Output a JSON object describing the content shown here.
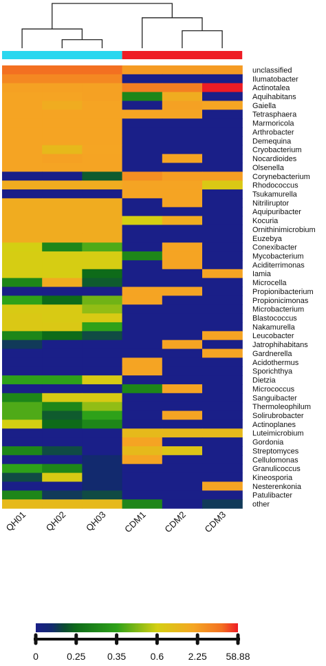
{
  "chart_data": {
    "type": "heatmap",
    "columns": [
      "QH01",
      "QH02",
      "QH03",
      "CDM1",
      "CDM2",
      "CDM3"
    ],
    "column_groups": [
      {
        "columns": [
          "QH01",
          "QH02",
          "QH03"
        ],
        "color": "#2ad7ef"
      },
      {
        "columns": [
          "CDM1",
          "CDM2",
          "CDM3"
        ],
        "color": "#ee1c25"
      }
    ],
    "rows": [
      {
        "label": "unclassified",
        "values": [
          20,
          20,
          20,
          6,
          6,
          6
        ]
      },
      {
        "label": "Ilumatobacter",
        "values": [
          12,
          12,
          12,
          0,
          0,
          0
        ]
      },
      {
        "label": "Actinotalea",
        "values": [
          4,
          4,
          4,
          15,
          15,
          58.88
        ]
      },
      {
        "label": "Aquihabitans",
        "values": [
          3,
          3,
          4,
          0.3,
          2,
          0
        ]
      },
      {
        "label": "Gaiella",
        "values": [
          3,
          2,
          3,
          0,
          4,
          2.5
        ]
      },
      {
        "label": "Tetrasphaera",
        "values": [
          3,
          3,
          3,
          2.5,
          2.5,
          0
        ]
      },
      {
        "label": "Marmoricola",
        "values": [
          3,
          3,
          3,
          0,
          0,
          0
        ]
      },
      {
        "label": "Arthrobacter",
        "values": [
          3,
          3,
          3,
          0,
          0,
          0
        ]
      },
      {
        "label": "Demequina",
        "values": [
          3,
          3,
          3,
          0,
          0,
          0
        ]
      },
      {
        "label": "Cryobacterium",
        "values": [
          3,
          1.5,
          2.5,
          0,
          0,
          0
        ]
      },
      {
        "label": "Nocardioides",
        "values": [
          3,
          4,
          3,
          0,
          3,
          0
        ]
      },
      {
        "label": "Olsenella",
        "values": [
          3,
          3,
          3,
          0,
          0,
          0
        ]
      },
      {
        "label": "Corynebacterium",
        "values": [
          0,
          0,
          0.2,
          10,
          5,
          5
        ]
      },
      {
        "label": "Rhodococcus",
        "values": [
          2,
          2,
          2,
          3,
          3,
          0.9
        ]
      },
      {
        "label": "Tsukamurella",
        "values": [
          0,
          0,
          0,
          3,
          3,
          0
        ]
      },
      {
        "label": "Nitriliruptor",
        "values": [
          2,
          2,
          2,
          0,
          3,
          0
        ]
      },
      {
        "label": "Aquipuribacter",
        "values": [
          2,
          2,
          2,
          0,
          0,
          0
        ]
      },
      {
        "label": "Kocuria",
        "values": [
          2,
          2,
          2,
          0.6,
          2,
          0
        ]
      },
      {
        "label": "Ornithinimicrobium",
        "values": [
          2,
          2,
          2,
          0,
          0,
          0
        ]
      },
      {
        "label": "Euzebya",
        "values": [
          2,
          2,
          2,
          0,
          0,
          0
        ]
      },
      {
        "label": "Conexibacter",
        "values": [
          0.6,
          0.3,
          0.4,
          0,
          3,
          0
        ]
      },
      {
        "label": "Mycobacterium",
        "values": [
          0.7,
          0.7,
          0.7,
          0.3,
          3,
          0
        ]
      },
      {
        "label": "Aciditerrimonas",
        "values": [
          0.7,
          0.7,
          0.7,
          0,
          3,
          0
        ]
      },
      {
        "label": "Iamia",
        "values": [
          0.7,
          0.7,
          0.25,
          0,
          0,
          3
        ]
      },
      {
        "label": "Microcella",
        "values": [
          0.3,
          2,
          0.2,
          0,
          0,
          0
        ]
      },
      {
        "label": "Propionibacterium",
        "values": [
          0,
          0,
          0,
          3,
          3,
          0
        ]
      },
      {
        "label": "Propionicimonas",
        "values": [
          0.35,
          0.25,
          0.45,
          3,
          0,
          0
        ]
      },
      {
        "label": "Microbacterium",
        "values": [
          0.8,
          0.8,
          0.5,
          0,
          0,
          0
        ]
      },
      {
        "label": "Blastococcus",
        "values": [
          0.9,
          0.8,
          0.8,
          0,
          0,
          0
        ]
      },
      {
        "label": "Nakamurella",
        "values": [
          0.9,
          0.9,
          0.35,
          0,
          0,
          0
        ]
      },
      {
        "label": "Leucobacter",
        "values": [
          0.3,
          0.25,
          0.15,
          0,
          0,
          3
        ]
      },
      {
        "label": "Jatrophihabitans",
        "values": [
          0.1,
          0,
          0,
          0,
          3,
          0
        ]
      },
      {
        "label": "Gardnerella",
        "values": [
          0,
          0,
          0,
          0,
          0,
          3
        ]
      },
      {
        "label": "Acidothermus",
        "values": [
          0,
          0,
          0,
          3,
          0,
          0
        ]
      },
      {
        "label": "Sporichthya",
        "values": [
          0,
          0,
          0,
          3,
          0,
          0
        ]
      },
      {
        "label": "Dietzia",
        "values": [
          0.35,
          0.35,
          0.8,
          0,
          0,
          0
        ]
      },
      {
        "label": "Micrococcus",
        "values": [
          0,
          0,
          0,
          0.3,
          3,
          0
        ]
      },
      {
        "label": "Sanguibacter",
        "values": [
          0.3,
          0.8,
          0.8,
          0,
          0,
          0
        ]
      },
      {
        "label": "Thermoleophilum",
        "values": [
          0.4,
          0.3,
          0.5,
          0,
          0,
          0
        ]
      },
      {
        "label": "Solirubrobacter",
        "values": [
          0.4,
          0.2,
          0.35,
          0,
          3,
          0
        ]
      },
      {
        "label": "Actinoplanes",
        "values": [
          0.6,
          0.25,
          0.3,
          0,
          0,
          0
        ]
      },
      {
        "label": "Luteimicrobium",
        "values": [
          0,
          0,
          0,
          1.5,
          1.5,
          1.5
        ]
      },
      {
        "label": "Gordonia",
        "values": [
          0,
          0,
          0,
          3,
          0,
          0
        ]
      },
      {
        "label": "Streptomyces",
        "values": [
          0.3,
          0.15,
          0,
          1.5,
          1,
          0
        ]
      },
      {
        "label": "Cellulomonas",
        "values": [
          0,
          0,
          0.05,
          3,
          0,
          0
        ]
      },
      {
        "label": "Granulicoccus",
        "values": [
          0.35,
          0.3,
          0.05,
          0,
          0,
          0
        ]
      },
      {
        "label": "Kineosporia",
        "values": [
          0.15,
          0.8,
          0.05,
          0,
          0,
          0
        ]
      },
      {
        "label": "Nesterenkonia",
        "values": [
          0,
          0,
          0.05,
          0,
          0,
          3
        ]
      },
      {
        "label": "Patulibacter",
        "values": [
          0.3,
          0.1,
          0.15,
          0,
          0,
          0
        ]
      },
      {
        "label": "other",
        "values": [
          1.5,
          1.5,
          1.5,
          0.3,
          0,
          0.1
        ]
      }
    ],
    "dendrogram": {
      "join_QH02_QH03": 0.19,
      "join_QH01_QH0203": 0.43,
      "join_CDM2_CDM3": 0.39,
      "join_CDM1_CDM23": 0.68,
      "join_root": 1.0
    },
    "legend": {
      "ticks": [
        "0",
        "0.25",
        "0.35",
        "0.6",
        "2.25",
        "58.88"
      ],
      "stops": [
        {
          "value": 0,
          "color": "#1a1f88"
        },
        {
          "value": 0.05,
          "color": "#122a6e"
        },
        {
          "value": 0.25,
          "color": "#0e6b19"
        },
        {
          "value": 0.35,
          "color": "#2ea119"
        },
        {
          "value": 0.6,
          "color": "#d4cf12"
        },
        {
          "value": 2.25,
          "color": "#f5a623"
        },
        {
          "value": 20,
          "color": "#f37021"
        },
        {
          "value": 58.88,
          "color": "#ee1c25"
        }
      ]
    }
  }
}
